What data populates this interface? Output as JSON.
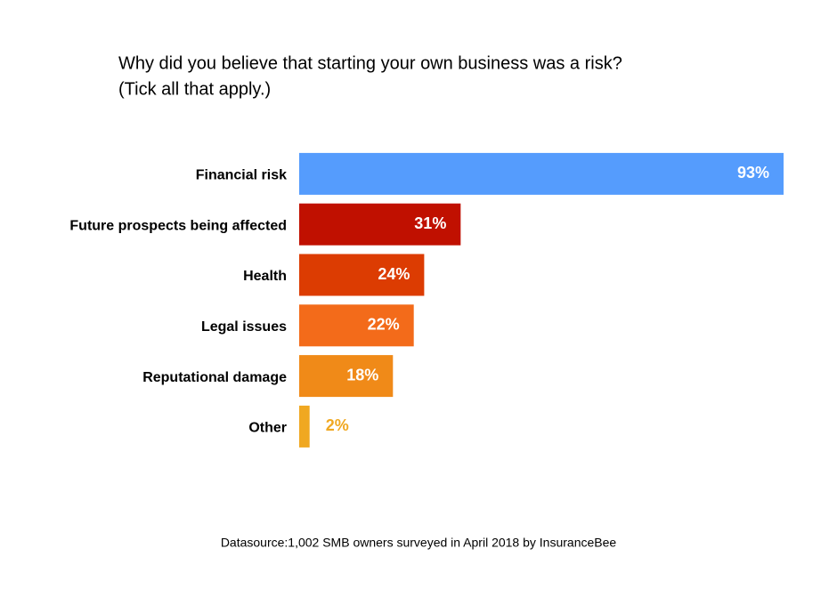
{
  "chart_data": {
    "type": "bar",
    "orientation": "horizontal",
    "title": "Why did you believe that starting your own business was a risk?",
    "subtitle": "(Tick all that apply.)",
    "categories": [
      "Financial risk",
      "Future prospects being affected",
      "Health",
      "Legal issues",
      "Reputational damage",
      "Other"
    ],
    "values": [
      93,
      31,
      24,
      22,
      18,
      2
    ],
    "value_labels": [
      "93%",
      "31%",
      "24%",
      "22%",
      "18%",
      "2%"
    ],
    "colors": [
      "#559cfd",
      "#c01000",
      "#dc3c02",
      "#f36b1a",
      "#f08a18",
      "#f0a821"
    ],
    "note": "Datasource:1,002 SMB owners surveyed in April 2018 by InsuranceBee"
  }
}
